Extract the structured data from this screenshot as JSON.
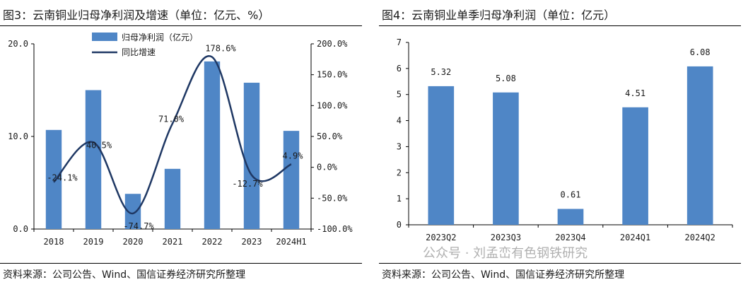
{
  "left_panel": {
    "title": "图3：云南铜业归母净利润及增速（单位：亿元、%）",
    "source": "资料来源：公司公告、Wind、国信证券经济研究所整理"
  },
  "right_panel": {
    "title": "图4：云南铜业单季归母净利润（单位：亿元）",
    "source": "资料来源：公司公告、Wind、国信证券经济研究所整理"
  },
  "watermark": "公众号 · 刘孟峦有色钢铁研究",
  "colors": {
    "bar": "#4f86c6",
    "line": "#1f3864"
  },
  "chart_data": [
    {
      "type": "bar",
      "categories": [
        "2018",
        "2019",
        "2020",
        "2021",
        "2022",
        "2023",
        "2024H1"
      ],
      "series": [
        {
          "name": "归母净利润（亿元）",
          "type": "bar",
          "axis": "left",
          "values": [
            10.7,
            15.0,
            3.8,
            6.5,
            18.1,
            15.8,
            10.6
          ]
        },
        {
          "name": "同比增速",
          "type": "line",
          "axis": "right",
          "values": [
            -24.1,
            40.5,
            -74.7,
            71.0,
            178.6,
            -12.7,
            4.9
          ],
          "labels": [
            "-24.1%",
            "40.5%",
            "-74.7%",
            "71.0%",
            "178.6%",
            "-12.7%",
            "4.9%"
          ]
        }
      ],
      "ylim": [
        0,
        20
      ],
      "y_ticks": [
        0,
        10,
        20
      ],
      "y_tick_labels": [
        "0.0",
        "10.0",
        "20.0"
      ],
      "y2lim": [
        -100,
        200
      ],
      "y2_ticks": [
        -100,
        -50,
        0,
        50,
        100,
        150,
        200
      ],
      "y2_tick_labels": [
        "-100.0%",
        "-50.0%",
        "0.0%",
        "50.0%",
        "100.0%",
        "150.0%",
        "200.0%"
      ],
      "grid": false,
      "legend_placement": "top-left"
    },
    {
      "type": "bar",
      "categories": [
        "2023Q2",
        "2023Q3",
        "2023Q4",
        "2024Q1",
        "2024Q2"
      ],
      "values": [
        5.32,
        5.08,
        0.61,
        4.51,
        6.08
      ],
      "value_labels": [
        "5.32",
        "5.08",
        "0.61",
        "4.51",
        "6.08"
      ],
      "ylim": [
        0,
        7
      ],
      "y_ticks": [
        0,
        1,
        2,
        3,
        4,
        5,
        6,
        7
      ],
      "y_tick_labels": [
        "0",
        "1",
        "2",
        "3",
        "4",
        "5",
        "6",
        "7"
      ],
      "grid": false
    }
  ]
}
